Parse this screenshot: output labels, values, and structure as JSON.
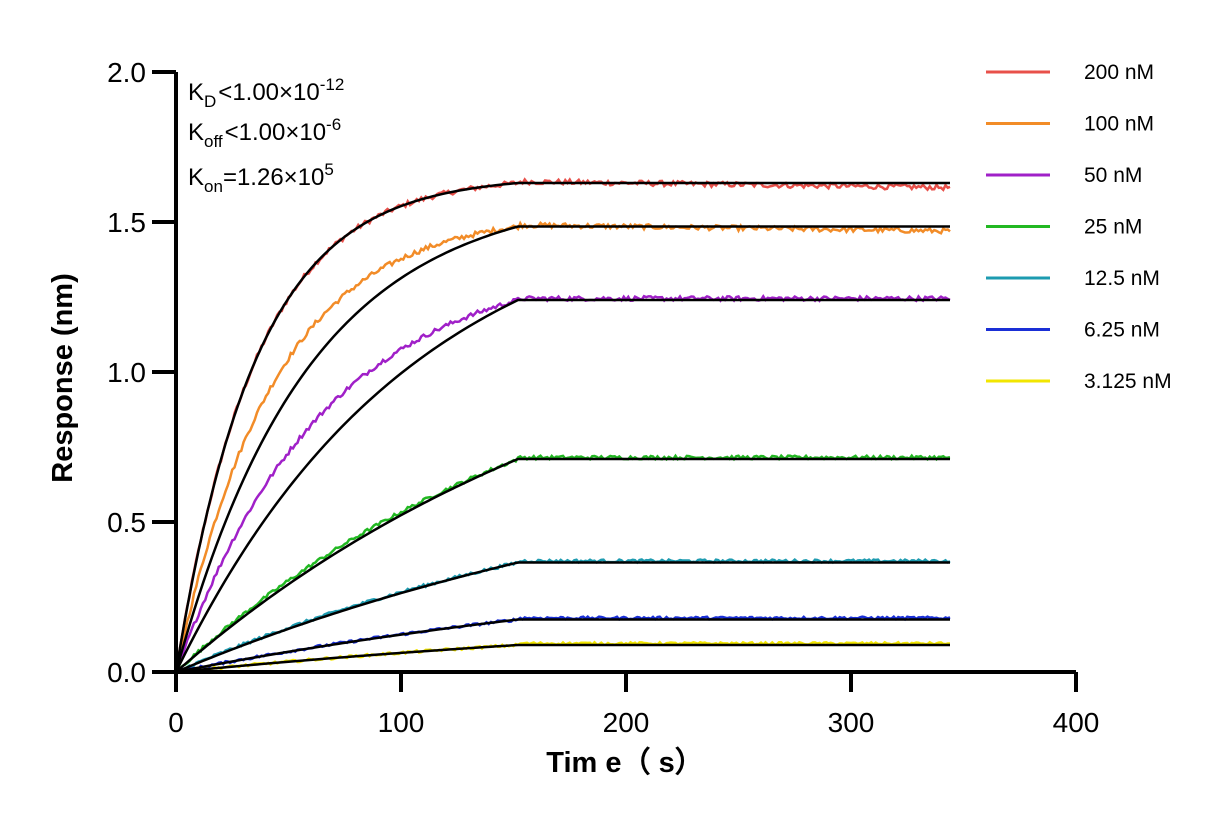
{
  "chart_data": {
    "type": "line",
    "title": "",
    "xlabel": "Tim e（ s）",
    "ylabel": "Response (nm)",
    "xlim": [
      0,
      400
    ],
    "ylim": [
      0,
      2.0
    ],
    "x_ticks": [
      "0",
      "100",
      "200",
      "300",
      "400"
    ],
    "y_ticks": [
      "0.0",
      "0.5",
      "1.0",
      "1.5",
      "2.0"
    ],
    "grid": false,
    "legend_position": "right",
    "association_end_s": 152,
    "end_time_s": 344,
    "annotations": {
      "kd": {
        "main": "K",
        "sub": "D",
        "rel": "<",
        "value": "1.00×10",
        "exp": "-12"
      },
      "koff": {
        "main": "K",
        "sub": "off",
        "rel": "<",
        "value": "1.00×10",
        "exp": "-6"
      },
      "kon": {
        "main": "K",
        "sub": "on",
        "rel": "=",
        "value": "1.26×10",
        "exp": "5"
      }
    },
    "series": [
      {
        "name": "200 nM",
        "color": "#e8504a",
        "plateau": 1.63,
        "drift": -0.02,
        "fit_k": 0.028,
        "meas_shape": 1.0
      },
      {
        "name": "100 nM",
        "color": "#f28c28",
        "plateau": 1.485,
        "drift": -0.02,
        "fit_k": 0.017,
        "meas_shape": 1.35
      },
      {
        "name": "50 nM",
        "color": "#a020c8",
        "plateau": 1.24,
        "drift": 0.0,
        "fit_k": 0.0095,
        "meas_shape": 1.6
      },
      {
        "name": "25 nM",
        "color": "#22b822",
        "plateau": 0.71,
        "drift": 0.0,
        "fit_k": 0.0048,
        "meas_shape": 1.2
      },
      {
        "name": "12.5 nM",
        "color": "#1d9bb0",
        "plateau": 0.365,
        "drift": 0.0,
        "fit_k": 0.0038,
        "meas_shape": 1.15
      },
      {
        "name": "6.25 nM",
        "color": "#1a2fd6",
        "plateau": 0.175,
        "drift": 0.0,
        "fit_k": 0.0033,
        "meas_shape": 1.1
      },
      {
        "name": "3.125 nM",
        "color": "#f2e600",
        "plateau": 0.09,
        "drift": 0.0,
        "fit_k": 0.003,
        "meas_shape": 1.05
      }
    ],
    "fit_color": "#000000"
  }
}
